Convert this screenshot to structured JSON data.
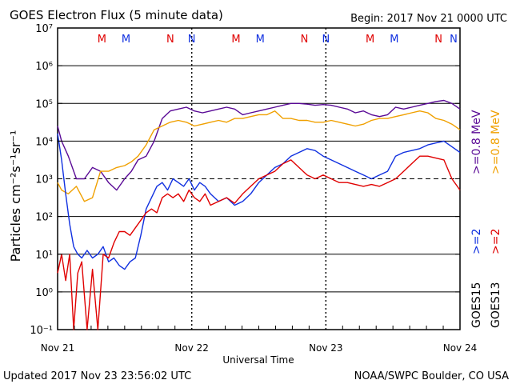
{
  "title": "GOES Electron Flux (5 minute data)",
  "begin": "Begin: 2017 Nov 21 0000 UTC",
  "updated": "Updated 2017 Nov 23 23:56:02 UTC",
  "credit": "NOAA/SWPC Boulder, CO USA",
  "colors": {
    "goes15_08": "#5a0a96",
    "goes13_08": "#f0a000",
    "goes15_2": "#1030e0",
    "goes13_2": "#e00000",
    "marker_m_red": "#e00000",
    "marker_blue": "#1030e0"
  },
  "chart_data": {
    "type": "line",
    "xlabel": "Universal Time",
    "ylabel": "Particles cm⁻²s⁻¹sr⁻¹",
    "x_ticks": [
      "Nov 21",
      "Nov 22",
      "Nov 23",
      "Nov 24"
    ],
    "x_unit": "days since 2017 Nov 21 0000 UTC",
    "xlim": [
      0,
      3
    ],
    "ylim_log10": [
      -1,
      7
    ],
    "y_ticks": [
      "10⁻¹",
      "10⁰",
      "10¹",
      "10²",
      "10³",
      "10⁴",
      "10⁵",
      "10⁶",
      "10⁷"
    ],
    "y_scale": "log",
    "threshold_log10": 3,
    "markers": [
      {
        "label": "M",
        "x": 0.33,
        "color": "#e00000"
      },
      {
        "label": "M",
        "x": 0.51,
        "color": "#1030e0"
      },
      {
        "label": "N",
        "x": 0.84,
        "color": "#e00000"
      },
      {
        "label": "N",
        "x": 1.0,
        "color": "#1030e0"
      },
      {
        "label": "M",
        "x": 1.33,
        "color": "#e00000"
      },
      {
        "label": "M",
        "x": 1.51,
        "color": "#1030e0"
      },
      {
        "label": "N",
        "x": 1.84,
        "color": "#e00000"
      },
      {
        "label": "N",
        "x": 2.0,
        "color": "#1030e0"
      },
      {
        "label": "M",
        "x": 2.33,
        "color": "#e00000"
      },
      {
        "label": "M",
        "x": 2.51,
        "color": "#1030e0"
      },
      {
        "label": "N",
        "x": 2.84,
        "color": "#e00000"
      },
      {
        "label": "N",
        "x": 3.0,
        "color": "#1030e0"
      }
    ],
    "legend": [
      {
        "name": "GOES15",
        "items": [
          ">=2",
          ">=0.8 MeV"
        ],
        "colors": [
          "#1030e0",
          "#5a0a96"
        ]
      },
      {
        "name": "GOES13",
        "items": [
          ">=2",
          ">=0.8 MeV"
        ],
        "colors": [
          "#e00000",
          "#f0a000"
        ]
      }
    ],
    "series": [
      {
        "name": "GOES15 >=0.8 MeV",
        "color": "#5a0a96",
        "x": [
          0,
          0.03,
          0.08,
          0.14,
          0.2,
          0.26,
          0.32,
          0.38,
          0.44,
          0.5,
          0.55,
          0.6,
          0.66,
          0.72,
          0.78,
          0.84,
          0.9,
          0.96,
          1.02,
          1.08,
          1.14,
          1.2,
          1.26,
          1.32,
          1.38,
          1.44,
          1.5,
          1.56,
          1.62,
          1.68,
          1.74,
          1.8,
          1.86,
          1.92,
          1.98,
          2.04,
          2.1,
          2.16,
          2.22,
          2.28,
          2.34,
          2.4,
          2.46,
          2.52,
          2.58,
          2.64,
          2.7,
          2.76,
          2.82,
          2.88,
          2.94,
          3.0
        ],
        "y": [
          4.4,
          4.0,
          3.6,
          3.0,
          3.0,
          3.3,
          3.2,
          2.9,
          2.7,
          3.0,
          3.2,
          3.5,
          3.6,
          4.0,
          4.6,
          4.8,
          4.85,
          4.9,
          4.8,
          4.75,
          4.8,
          4.85,
          4.9,
          4.85,
          4.7,
          4.75,
          4.8,
          4.85,
          4.9,
          4.95,
          5.0,
          5.0,
          4.98,
          4.95,
          4.97,
          4.95,
          4.9,
          4.85,
          4.75,
          4.8,
          4.7,
          4.65,
          4.7,
          4.9,
          4.85,
          4.9,
          4.95,
          5.0,
          5.05,
          5.08,
          5.0,
          4.85
        ]
      },
      {
        "name": "GOES13 >=0.8 MeV",
        "color": "#f0a000",
        "x": [
          0,
          0.03,
          0.08,
          0.14,
          0.2,
          0.26,
          0.32,
          0.38,
          0.44,
          0.5,
          0.55,
          0.6,
          0.66,
          0.72,
          0.78,
          0.84,
          0.9,
          0.96,
          1.02,
          1.08,
          1.14,
          1.2,
          1.26,
          1.32,
          1.38,
          1.44,
          1.5,
          1.56,
          1.62,
          1.68,
          1.74,
          1.8,
          1.86,
          1.92,
          1.98,
          2.04,
          2.1,
          2.16,
          2.22,
          2.28,
          2.34,
          2.4,
          2.46,
          2.52,
          2.58,
          2.64,
          2.7,
          2.76,
          2.82,
          2.88,
          2.94,
          3.0
        ],
        "y": [
          2.9,
          2.7,
          2.6,
          2.8,
          2.4,
          2.5,
          3.2,
          3.2,
          3.3,
          3.35,
          3.45,
          3.6,
          3.9,
          4.3,
          4.4,
          4.5,
          4.55,
          4.5,
          4.4,
          4.45,
          4.5,
          4.55,
          4.5,
          4.6,
          4.6,
          4.65,
          4.7,
          4.7,
          4.8,
          4.6,
          4.6,
          4.55,
          4.55,
          4.5,
          4.5,
          4.55,
          4.5,
          4.45,
          4.4,
          4.45,
          4.55,
          4.6,
          4.6,
          4.65,
          4.7,
          4.75,
          4.8,
          4.75,
          4.6,
          4.55,
          4.45,
          4.3
        ]
      },
      {
        "name": "GOES15 >=2 MeV",
        "color": "#1030e0",
        "x": [
          0,
          0.03,
          0.06,
          0.09,
          0.12,
          0.15,
          0.18,
          0.22,
          0.26,
          0.3,
          0.34,
          0.38,
          0.42,
          0.46,
          0.5,
          0.54,
          0.58,
          0.62,
          0.66,
          0.7,
          0.74,
          0.78,
          0.82,
          0.86,
          0.9,
          0.94,
          0.98,
          1.02,
          1.06,
          1.1,
          1.14,
          1.2,
          1.26,
          1.32,
          1.38,
          1.44,
          1.5,
          1.56,
          1.62,
          1.68,
          1.74,
          1.8,
          1.86,
          1.92,
          1.98,
          2.04,
          2.1,
          2.16,
          2.22,
          2.28,
          2.34,
          2.4,
          2.46,
          2.52,
          2.58,
          2.64,
          2.7,
          2.76,
          2.82,
          2.88,
          2.94,
          3.0
        ],
        "y": [
          4.2,
          3.5,
          2.6,
          1.8,
          1.2,
          1.0,
          0.9,
          1.1,
          0.9,
          1.0,
          1.2,
          0.8,
          0.9,
          0.7,
          0.6,
          0.8,
          0.9,
          1.5,
          2.2,
          2.5,
          2.8,
          2.9,
          2.7,
          3.0,
          2.9,
          2.8,
          3.0,
          2.7,
          2.9,
          2.8,
          2.6,
          2.4,
          2.5,
          2.3,
          2.4,
          2.6,
          2.9,
          3.1,
          3.3,
          3.4,
          3.6,
          3.7,
          3.8,
          3.75,
          3.6,
          3.5,
          3.4,
          3.3,
          3.2,
          3.1,
          3.0,
          3.1,
          3.2,
          3.6,
          3.7,
          3.75,
          3.8,
          3.9,
          3.95,
          4.0,
          3.85,
          3.7
        ]
      },
      {
        "name": "GOES13 >=2 MeV",
        "color": "#e00000",
        "x": [
          0,
          0.03,
          0.06,
          0.09,
          0.12,
          0.15,
          0.18,
          0.22,
          0.26,
          0.3,
          0.34,
          0.38,
          0.42,
          0.46,
          0.5,
          0.54,
          0.58,
          0.62,
          0.66,
          0.7,
          0.74,
          0.78,
          0.82,
          0.86,
          0.9,
          0.94,
          0.98,
          1.02,
          1.06,
          1.1,
          1.14,
          1.2,
          1.26,
          1.32,
          1.38,
          1.44,
          1.5,
          1.56,
          1.62,
          1.68,
          1.74,
          1.8,
          1.86,
          1.92,
          1.98,
          2.04,
          2.1,
          2.16,
          2.22,
          2.28,
          2.34,
          2.4,
          2.46,
          2.52,
          2.58,
          2.64,
          2.7,
          2.76,
          2.82,
          2.88,
          2.94,
          3.0
        ],
        "y": [
          0.5,
          1.0,
          0.3,
          1.0,
          -1.0,
          0.5,
          0.8,
          -1.0,
          0.6,
          -1.0,
          1.0,
          0.9,
          1.3,
          1.6,
          1.6,
          1.5,
          1.7,
          1.9,
          2.1,
          2.2,
          2.1,
          2.5,
          2.6,
          2.5,
          2.6,
          2.4,
          2.7,
          2.5,
          2.4,
          2.6,
          2.3,
          2.4,
          2.5,
          2.35,
          2.6,
          2.8,
          3.0,
          3.1,
          3.2,
          3.4,
          3.5,
          3.3,
          3.1,
          3.0,
          3.1,
          3.0,
          2.9,
          2.9,
          2.85,
          2.8,
          2.85,
          2.8,
          2.9,
          3.0,
          3.2,
          3.4,
          3.6,
          3.6,
          3.55,
          3.5,
          3.0,
          2.7
        ]
      }
    ]
  }
}
